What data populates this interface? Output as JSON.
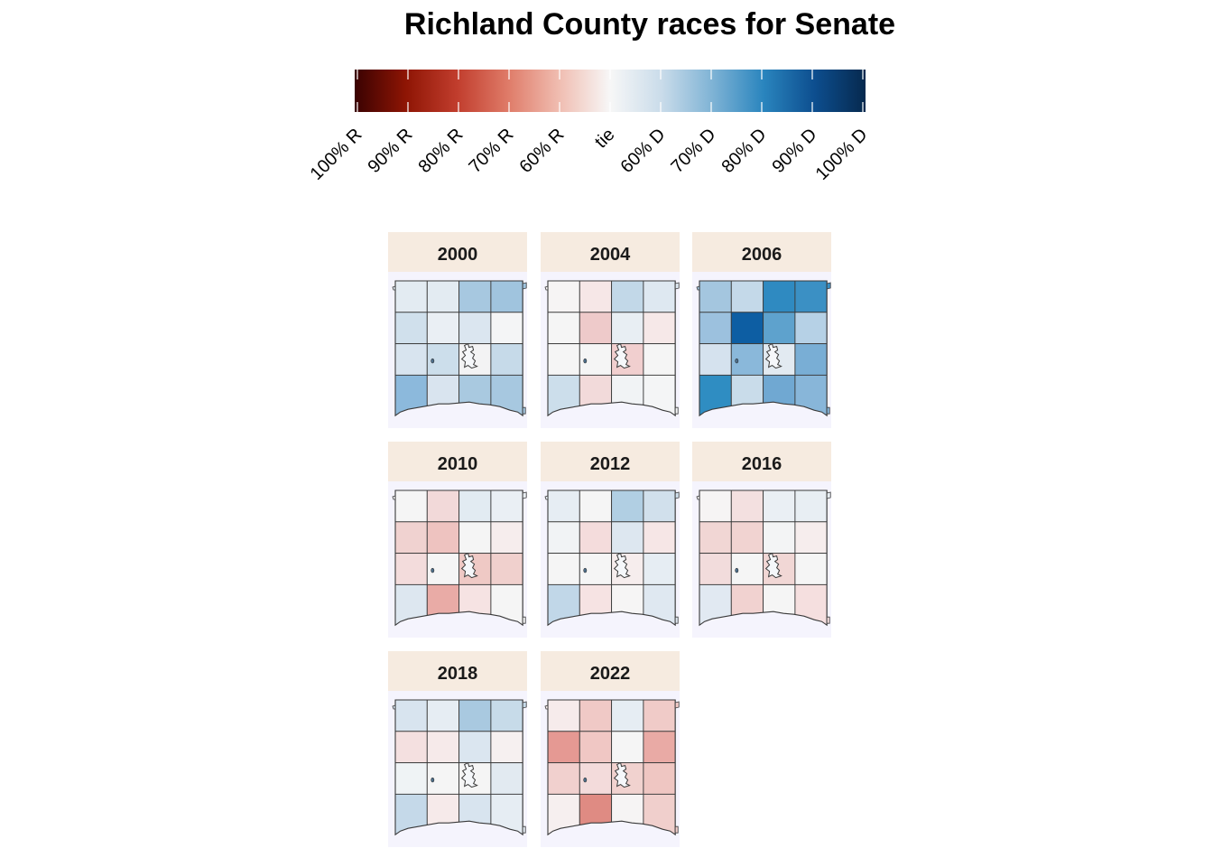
{
  "title": "Richland County races for Senate",
  "legend": {
    "tick_labels": [
      "100% R",
      "90% R",
      "80% R",
      "70% R",
      "60% R",
      "tie",
      "60% D",
      "70% D",
      "80% D",
      "90% D",
      "100% D"
    ],
    "colors": [
      "#3a0202",
      "#8e1504",
      "#c13d2d",
      "#df7b68",
      "#f0bdb1",
      "#f7f7f7",
      "#cadcea",
      "#7fb3d5",
      "#2a85be",
      "#0d4e8f",
      "#06294e"
    ]
  },
  "panel_header_color": "#f6ebe0",
  "panel_background_color": "#f5f4fd",
  "panels": [
    {
      "year": "2000",
      "colors": [
        "#e3ebf2",
        "#e3ebf2",
        "#a7c8e0",
        "#a0c4de",
        "#d0e0ec",
        "#eaeff4",
        "#dbe6f0",
        "#f4f5f6",
        "#d8e4ef",
        "#ccdeeb",
        "#f3f3f4",
        "#c6dae9",
        "#8cb9dc",
        "#d9e4ef",
        "#a9c9e0",
        "#a7c8e0"
      ]
    },
    {
      "year": "2004",
      "colors": [
        "#f6f4f4",
        "#f6e7e7",
        "#c2d8e8",
        "#dee8f1",
        "#f5f5f5",
        "#eecaca",
        "#e8eef3",
        "#f6e8e8",
        "#f5f5f5",
        "#f5f5f5",
        "#f1cfcf",
        "#f5f5f5",
        "#ccdeeb",
        "#f2dada",
        "#f1f3f5",
        "#f4f5f6"
      ]
    },
    {
      "year": "2006",
      "colors": [
        "#a4c6df",
        "#c4d9e9",
        "#2f8ac1",
        "#3b90c4",
        "#9cc1de",
        "#0d5ea3",
        "#5ea2cd",
        "#b6d1e6",
        "#d5e2ee",
        "#8ab8da",
        "#e2eaf1",
        "#79aed5",
        "#2f8dc2",
        "#c9dcea",
        "#70a8d2",
        "#88b6d9"
      ]
    },
    {
      "year": "2010",
      "colors": [
        "#f5f5f5",
        "#f2d9d9",
        "#e2ebf2",
        "#eaeff4",
        "#f0d2d0",
        "#eec3c0",
        "#f5f5f5",
        "#f6eded",
        "#f3dcdc",
        "#f5f5f5",
        "#efc9c5",
        "#f0d0cd",
        "#dde7f0",
        "#e9aba6",
        "#f6e3e3",
        "#f5f5f5"
      ]
    },
    {
      "year": "2012",
      "colors": [
        "#e6edf3",
        "#f5f5f5",
        "#b1cfe3",
        "#d1e0ec",
        "#f1f3f5",
        "#f4dcdc",
        "#dde7f0",
        "#f6e6e6",
        "#f5f5f5",
        "#f5f5f5",
        "#f6eded",
        "#e6edf3",
        "#c1d7e8",
        "#f6e3e3",
        "#f6f5f5",
        "#dfe8f1"
      ]
    },
    {
      "year": "2016",
      "colors": [
        "#f6f4f4",
        "#f3e0e0",
        "#eaeff4",
        "#e8eef3",
        "#f1d6d4",
        "#f1d3d1",
        "#f3f4f5",
        "#f6eded",
        "#f2dcdc",
        "#f5f5f5",
        "#f1d7d5",
        "#f5f5f5",
        "#e1e9f2",
        "#f1d2d0",
        "#f5f5f5",
        "#f5dfdf"
      ]
    },
    {
      "year": "2018",
      "colors": [
        "#d8e4ef",
        "#e6edf3",
        "#a9c9e0",
        "#c7dbe9",
        "#f4e0e0",
        "#f6eaea",
        "#dbe6f0",
        "#f6f0f0",
        "#eff3f5",
        "#f5f5f5",
        "#f5f5f5",
        "#e2eaf1",
        "#c5d9e9",
        "#f6eaea",
        "#d8e4ef",
        "#e6edf3"
      ]
    },
    {
      "year": "2022",
      "colors": [
        "#f6ebeb",
        "#f0c9c6",
        "#e6edf3",
        "#f0cbc8",
        "#e59993",
        "#f0c7c4",
        "#f5f5f5",
        "#e9aaa5",
        "#f1d0ce",
        "#f3dbdb",
        "#f1d2cf",
        "#efc6c2",
        "#f6efef",
        "#df8b83",
        "#f6f4f4",
        "#f0cfcc"
      ]
    }
  ]
}
